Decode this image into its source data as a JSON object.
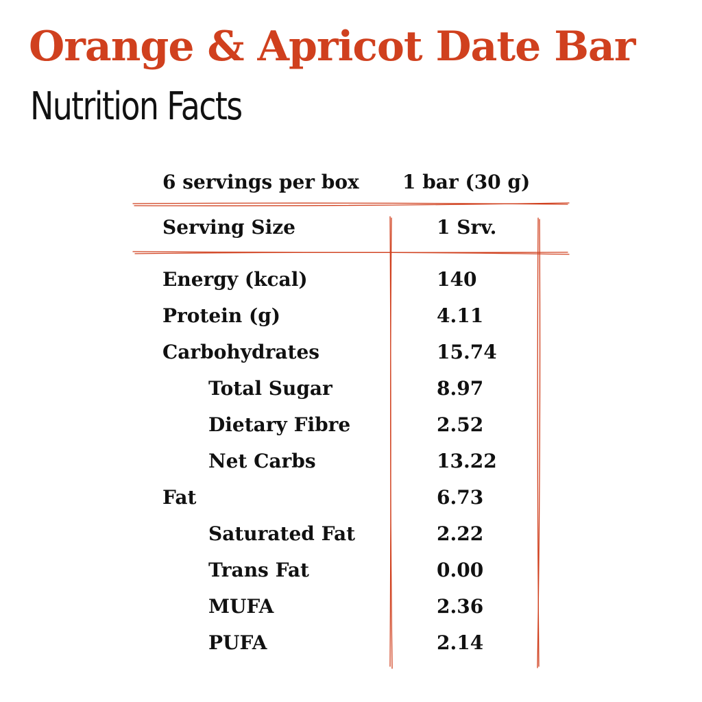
{
  "product": {
    "title": "Orange & Apricot Date Bar",
    "subtitle": "Nutrition Facts"
  },
  "accent_color": "#d0401e",
  "header": {
    "servings_per_box": "6 servings per box",
    "serving_weight": "1 bar (30 g)",
    "serving_size_label": "Serving Size",
    "serving_size_value": "1 Srv."
  },
  "nutrients": [
    {
      "label": "Energy (kcal)",
      "value": "140",
      "indent": false
    },
    {
      "label": "Protein (g)",
      "value": "4.11",
      "indent": false
    },
    {
      "label": "Carbohydrates",
      "value": "15.74",
      "indent": false
    },
    {
      "label": "Total Sugar",
      "value": "8.97",
      "indent": true
    },
    {
      "label": "Dietary Fibre",
      "value": "2.52",
      "indent": true
    },
    {
      "label": "Net Carbs",
      "value": "13.22",
      "indent": true
    },
    {
      "label": "Fat",
      "value": "6.73",
      "indent": false
    },
    {
      "label": "Saturated Fat",
      "value": "2.22",
      "indent": true
    },
    {
      "label": "Trans Fat",
      "value": "0.00",
      "indent": true
    },
    {
      "label": "MUFA",
      "value": "2.36",
      "indent": true
    },
    {
      "label": "PUFA",
      "value": "2.14",
      "indent": true
    }
  ]
}
